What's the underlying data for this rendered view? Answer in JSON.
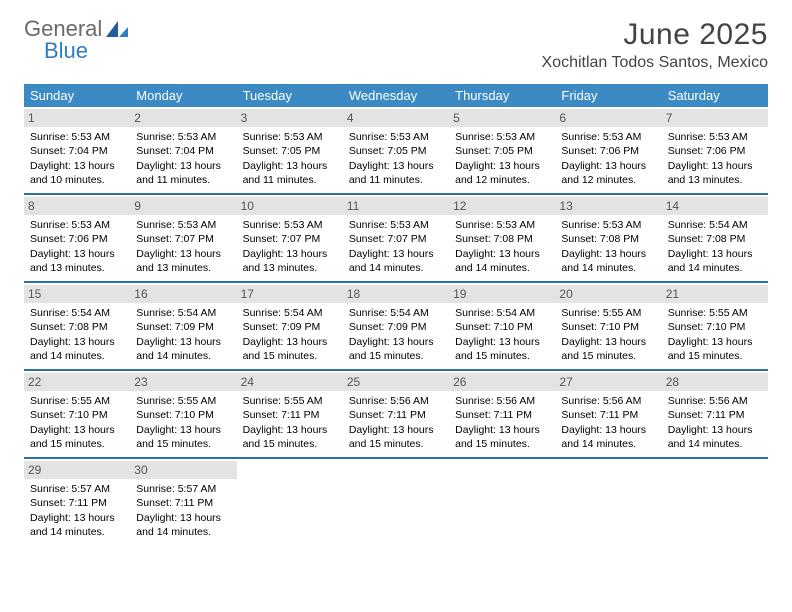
{
  "logo": {
    "text1": "General",
    "text2": "Blue"
  },
  "title": "June 2025",
  "location": "Xochitlan Todos Santos, Mexico",
  "colors": {
    "header_bg": "#3b8ac4",
    "header_text": "#ffffff",
    "divider": "#2f6fa3",
    "daynum_bg": "#e3e3e3",
    "daynum_text": "#555555",
    "logo_gray": "#6a6a6a",
    "logo_blue": "#2f7ebf"
  },
  "dow": [
    "Sunday",
    "Monday",
    "Tuesday",
    "Wednesday",
    "Thursday",
    "Friday",
    "Saturday"
  ],
  "weeks": [
    [
      {
        "n": "1",
        "sr": "5:53 AM",
        "ss": "7:04 PM",
        "dl": "13 hours and 10 minutes."
      },
      {
        "n": "2",
        "sr": "5:53 AM",
        "ss": "7:04 PM",
        "dl": "13 hours and 11 minutes."
      },
      {
        "n": "3",
        "sr": "5:53 AM",
        "ss": "7:05 PM",
        "dl": "13 hours and 11 minutes."
      },
      {
        "n": "4",
        "sr": "5:53 AM",
        "ss": "7:05 PM",
        "dl": "13 hours and 11 minutes."
      },
      {
        "n": "5",
        "sr": "5:53 AM",
        "ss": "7:05 PM",
        "dl": "13 hours and 12 minutes."
      },
      {
        "n": "6",
        "sr": "5:53 AM",
        "ss": "7:06 PM",
        "dl": "13 hours and 12 minutes."
      },
      {
        "n": "7",
        "sr": "5:53 AM",
        "ss": "7:06 PM",
        "dl": "13 hours and 13 minutes."
      }
    ],
    [
      {
        "n": "8",
        "sr": "5:53 AM",
        "ss": "7:06 PM",
        "dl": "13 hours and 13 minutes."
      },
      {
        "n": "9",
        "sr": "5:53 AM",
        "ss": "7:07 PM",
        "dl": "13 hours and 13 minutes."
      },
      {
        "n": "10",
        "sr": "5:53 AM",
        "ss": "7:07 PM",
        "dl": "13 hours and 13 minutes."
      },
      {
        "n": "11",
        "sr": "5:53 AM",
        "ss": "7:07 PM",
        "dl": "13 hours and 14 minutes."
      },
      {
        "n": "12",
        "sr": "5:53 AM",
        "ss": "7:08 PM",
        "dl": "13 hours and 14 minutes."
      },
      {
        "n": "13",
        "sr": "5:53 AM",
        "ss": "7:08 PM",
        "dl": "13 hours and 14 minutes."
      },
      {
        "n": "14",
        "sr": "5:54 AM",
        "ss": "7:08 PM",
        "dl": "13 hours and 14 minutes."
      }
    ],
    [
      {
        "n": "15",
        "sr": "5:54 AM",
        "ss": "7:08 PM",
        "dl": "13 hours and 14 minutes."
      },
      {
        "n": "16",
        "sr": "5:54 AM",
        "ss": "7:09 PM",
        "dl": "13 hours and 14 minutes."
      },
      {
        "n": "17",
        "sr": "5:54 AM",
        "ss": "7:09 PM",
        "dl": "13 hours and 15 minutes."
      },
      {
        "n": "18",
        "sr": "5:54 AM",
        "ss": "7:09 PM",
        "dl": "13 hours and 15 minutes."
      },
      {
        "n": "19",
        "sr": "5:54 AM",
        "ss": "7:10 PM",
        "dl": "13 hours and 15 minutes."
      },
      {
        "n": "20",
        "sr": "5:55 AM",
        "ss": "7:10 PM",
        "dl": "13 hours and 15 minutes."
      },
      {
        "n": "21",
        "sr": "5:55 AM",
        "ss": "7:10 PM",
        "dl": "13 hours and 15 minutes."
      }
    ],
    [
      {
        "n": "22",
        "sr": "5:55 AM",
        "ss": "7:10 PM",
        "dl": "13 hours and 15 minutes."
      },
      {
        "n": "23",
        "sr": "5:55 AM",
        "ss": "7:10 PM",
        "dl": "13 hours and 15 minutes."
      },
      {
        "n": "24",
        "sr": "5:55 AM",
        "ss": "7:11 PM",
        "dl": "13 hours and 15 minutes."
      },
      {
        "n": "25",
        "sr": "5:56 AM",
        "ss": "7:11 PM",
        "dl": "13 hours and 15 minutes."
      },
      {
        "n": "26",
        "sr": "5:56 AM",
        "ss": "7:11 PM",
        "dl": "13 hours and 15 minutes."
      },
      {
        "n": "27",
        "sr": "5:56 AM",
        "ss": "7:11 PM",
        "dl": "13 hours and 14 minutes."
      },
      {
        "n": "28",
        "sr": "5:56 AM",
        "ss": "7:11 PM",
        "dl": "13 hours and 14 minutes."
      }
    ],
    [
      {
        "n": "29",
        "sr": "5:57 AM",
        "ss": "7:11 PM",
        "dl": "13 hours and 14 minutes."
      },
      {
        "n": "30",
        "sr": "5:57 AM",
        "ss": "7:11 PM",
        "dl": "13 hours and 14 minutes."
      },
      null,
      null,
      null,
      null,
      null
    ]
  ],
  "labels": {
    "sunrise": "Sunrise:",
    "sunset": "Sunset:",
    "daylight": "Daylight:"
  }
}
